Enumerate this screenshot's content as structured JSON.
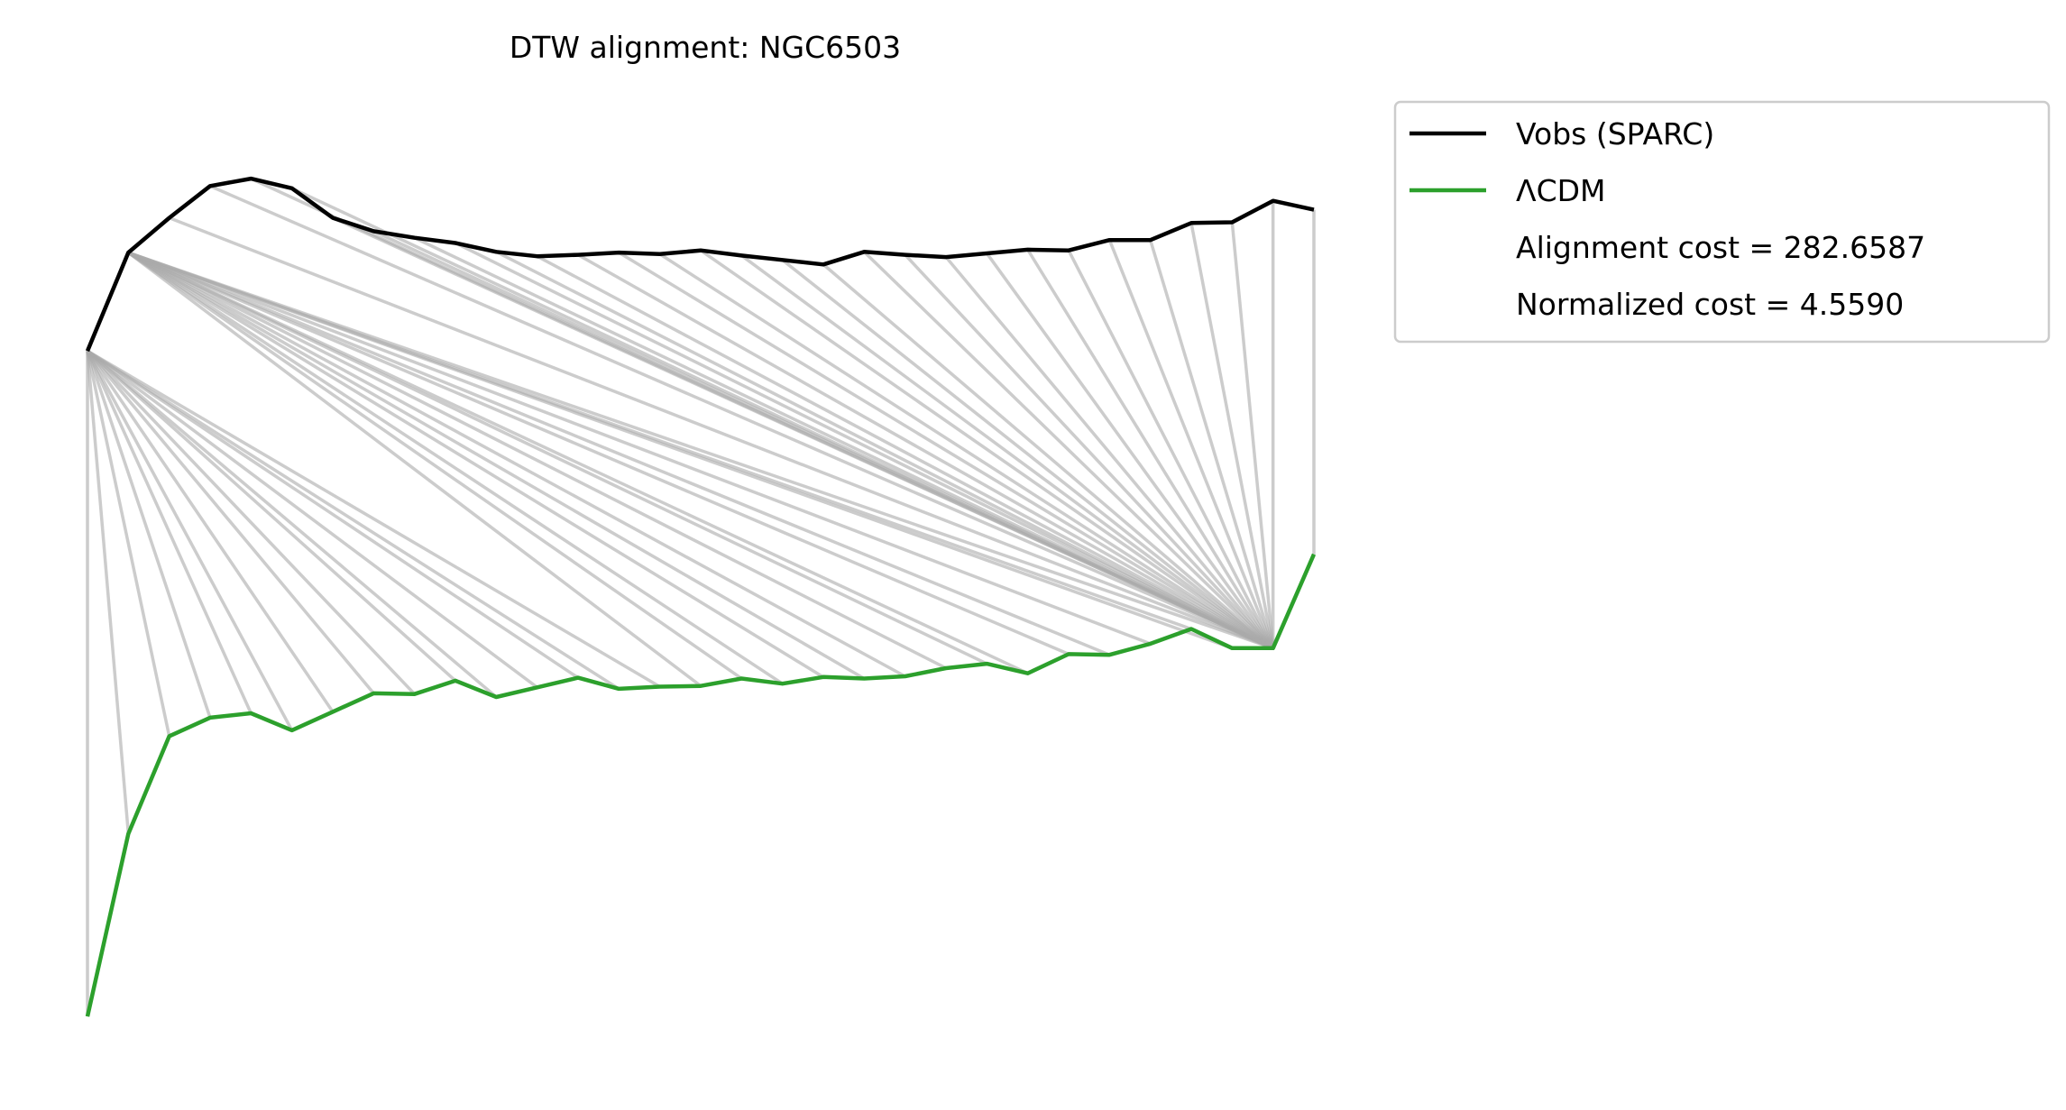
{
  "chart_data": {
    "type": "line",
    "title": "DTW alignment: NGC6503",
    "xlabel": "",
    "ylabel": "",
    "axes_visible": false,
    "x": [
      0,
      1,
      2,
      3,
      4,
      5,
      6,
      7,
      8,
      9,
      10,
      11,
      12,
      13,
      14,
      15,
      16,
      17,
      18,
      19,
      20,
      21,
      22,
      23,
      24,
      25,
      26,
      27,
      28,
      29,
      30
    ],
    "xlim": [
      0,
      30
    ],
    "vobs_offset": 0,
    "lcdm_offset": 9,
    "ylim": [
      -9.4,
      3.1
    ],
    "series": [
      {
        "name": "Vobs (SPARC)",
        "color": "#000000",
        "values": [
          0.0,
          1.33,
          1.8,
          2.23,
          2.33,
          2.2,
          1.8,
          1.62,
          1.53,
          1.46,
          1.34,
          1.28,
          1.3,
          1.33,
          1.31,
          1.36,
          1.29,
          1.23,
          1.17,
          1.34,
          1.3,
          1.27,
          1.32,
          1.37,
          1.36,
          1.5,
          1.5,
          1.73,
          1.74,
          2.03,
          1.91
        ]
      },
      {
        "name": "ΛCDM",
        "color": "#2ca02c",
        "values": [
          0.0,
          2.47,
          3.79,
          4.04,
          4.1,
          3.87,
          4.12,
          4.37,
          4.36,
          4.54,
          4.32,
          4.45,
          4.58,
          4.43,
          4.46,
          4.47,
          4.57,
          4.5,
          4.59,
          4.57,
          4.6,
          4.71,
          4.77,
          4.64,
          4.9,
          4.89,
          5.04,
          5.24,
          4.98,
          4.98,
          6.25
        ]
      }
    ],
    "alignment_color": "#aaaaaa",
    "alignment_path": [
      [
        0,
        0
      ],
      [
        0,
        1
      ],
      [
        0,
        2
      ],
      [
        0,
        3
      ],
      [
        0,
        4
      ],
      [
        0,
        5
      ],
      [
        0,
        6
      ],
      [
        0,
        7
      ],
      [
        0,
        8
      ],
      [
        0,
        9
      ],
      [
        0,
        10
      ],
      [
        0,
        11
      ],
      [
        0,
        12
      ],
      [
        0,
        13
      ],
      [
        0,
        14
      ],
      [
        1,
        15
      ],
      [
        1,
        16
      ],
      [
        1,
        17
      ],
      [
        1,
        18
      ],
      [
        1,
        19
      ],
      [
        1,
        20
      ],
      [
        1,
        21
      ],
      [
        1,
        22
      ],
      [
        1,
        23
      ],
      [
        1,
        24
      ],
      [
        1,
        25
      ],
      [
        1,
        26
      ],
      [
        1,
        27
      ],
      [
        1,
        28
      ],
      [
        1,
        29
      ],
      [
        2,
        29
      ],
      [
        3,
        29
      ],
      [
        4,
        29
      ],
      [
        5,
        29
      ],
      [
        6,
        29
      ],
      [
        7,
        29
      ],
      [
        8,
        29
      ],
      [
        9,
        29
      ],
      [
        10,
        29
      ],
      [
        11,
        29
      ],
      [
        12,
        29
      ],
      [
        13,
        29
      ],
      [
        14,
        29
      ],
      [
        15,
        29
      ],
      [
        16,
        29
      ],
      [
        17,
        29
      ],
      [
        18,
        29
      ],
      [
        19,
        29
      ],
      [
        20,
        29
      ],
      [
        21,
        29
      ],
      [
        22,
        29
      ],
      [
        23,
        29
      ],
      [
        24,
        29
      ],
      [
        25,
        29
      ],
      [
        26,
        29
      ],
      [
        27,
        29
      ],
      [
        28,
        29
      ],
      [
        29,
        29
      ],
      [
        30,
        30
      ]
    ],
    "legend": {
      "position": "outside-upper-right",
      "entries": [
        "Vobs (SPARC)",
        "ΛCDM"
      ],
      "annotations": [
        "Alignment cost = 282.6587",
        "Normalized cost = 4.5590"
      ]
    }
  },
  "colors": {
    "legend_border": "#cccccc",
    "background": "#ffffff"
  }
}
